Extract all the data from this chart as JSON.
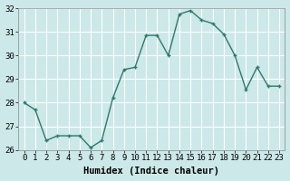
{
  "x": [
    0,
    1,
    2,
    3,
    4,
    5,
    6,
    7,
    8,
    9,
    10,
    11,
    12,
    13,
    14,
    15,
    16,
    17,
    18,
    19,
    20,
    21,
    22,
    23
  ],
  "y": [
    28.0,
    27.7,
    26.4,
    26.6,
    26.6,
    26.6,
    26.1,
    26.4,
    28.2,
    29.4,
    29.5,
    30.85,
    30.85,
    30.0,
    31.75,
    31.9,
    31.5,
    31.35,
    30.9,
    30.0,
    28.55,
    29.5,
    28.7,
    28.7
  ],
  "xlabel": "Humidex (Indice chaleur)",
  "ylim": [
    26,
    32
  ],
  "yticks": [
    26,
    27,
    28,
    29,
    30,
    31,
    32
  ],
  "xticks": [
    0,
    1,
    2,
    3,
    4,
    5,
    6,
    7,
    8,
    9,
    10,
    11,
    12,
    13,
    14,
    15,
    16,
    17,
    18,
    19,
    20,
    21,
    22,
    23
  ],
  "line_color": "#2d7a6a",
  "marker_color": "#2d7a6a",
  "bg_color": "#cce8e8",
  "grid_color": "#b0d0d0",
  "tick_label_fontsize": 6.5,
  "xlabel_fontsize": 7.5
}
